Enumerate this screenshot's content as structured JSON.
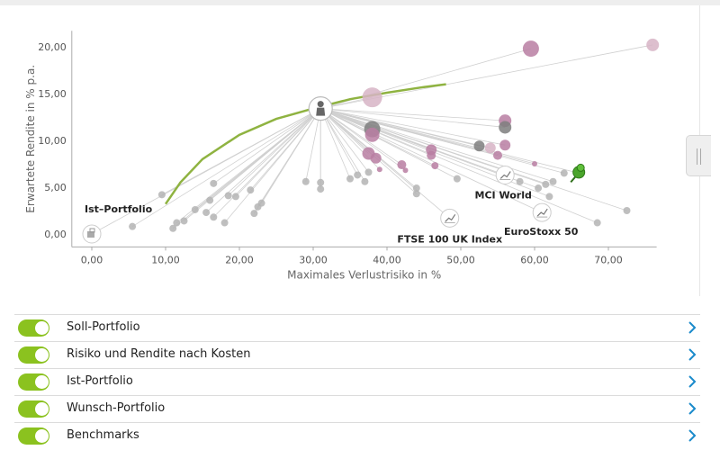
{
  "chart_data": {
    "type": "scatter",
    "xlabel": "Maximales Verlustrisiko in %",
    "ylabel": "Erwartete Rendite in % p.a.",
    "xlim": [
      -1,
      78
    ],
    "ylim": [
      -1,
      22
    ],
    "xticks": [
      0,
      10,
      20,
      30,
      40,
      50,
      60,
      70
    ],
    "xtick_labels": [
      "0,00",
      "10,00",
      "20,00",
      "30,00",
      "40,00",
      "50,00",
      "60,00",
      "70,00"
    ],
    "yticks": [
      0,
      5,
      10,
      15,
      20
    ],
    "ytick_labels": [
      "0,00",
      "5,00",
      "10,00",
      "15,00",
      "20,00"
    ],
    "colors": {
      "curve": "#8fb341",
      "gray_point": "#b4b4b4",
      "pink_point": "#b87ea2",
      "light_pink_point": "#d7b4c6",
      "dark_point": "#7e7e7e",
      "link_line": "#d0d0d0",
      "pin": "#4aa52b",
      "axis": "#aaaaaa"
    },
    "efficient_frontier": [
      [
        10,
        3.2
      ],
      [
        12,
        5.5
      ],
      [
        15,
        8
      ],
      [
        20,
        10.6
      ],
      [
        25,
        12.3
      ],
      [
        30,
        13.4
      ],
      [
        35,
        14.4
      ],
      [
        40,
        15.1
      ],
      [
        45,
        15.7
      ],
      [
        48,
        16
      ]
    ],
    "soll_portfolio": {
      "x": 31,
      "y": 13.4,
      "icon": "person-icon"
    },
    "ist_portfolio": {
      "label": "Ist–Portfolio",
      "x": 0,
      "y": 0,
      "icon": "portfolio-icon"
    },
    "benchmarks": [
      {
        "label": "MCI World",
        "x": 56,
        "y": 6.3,
        "icon": "chart-icon"
      },
      {
        "label": "FTSE 100 UK Index",
        "x": 48.5,
        "y": 1.7,
        "icon": "chart-icon"
      },
      {
        "label": "EuroStoxx 50",
        "x": 61,
        "y": 2.3,
        "icon": "chart-icon"
      }
    ],
    "wunsch_portfolio": {
      "x": 66,
      "y": 6.5,
      "icon": "pin-icon"
    },
    "points": [
      {
        "x": 5.5,
        "y": 0.8,
        "r": 4,
        "c": "gray_point"
      },
      {
        "x": 9.5,
        "y": 4.2,
        "r": 4,
        "c": "gray_point"
      },
      {
        "x": 11,
        "y": 0.6,
        "r": 4,
        "c": "gray_point"
      },
      {
        "x": 11.5,
        "y": 1.2,
        "r": 4,
        "c": "gray_point"
      },
      {
        "x": 12.5,
        "y": 1.4,
        "r": 4,
        "c": "gray_point"
      },
      {
        "x": 14,
        "y": 2.6,
        "r": 4,
        "c": "gray_point"
      },
      {
        "x": 15.5,
        "y": 2.3,
        "r": 4,
        "c": "gray_point"
      },
      {
        "x": 16,
        "y": 3.6,
        "r": 4,
        "c": "gray_point"
      },
      {
        "x": 16.5,
        "y": 1.8,
        "r": 4,
        "c": "gray_point"
      },
      {
        "x": 16.5,
        "y": 5.4,
        "r": 4,
        "c": "gray_point"
      },
      {
        "x": 18,
        "y": 1.2,
        "r": 4,
        "c": "gray_point"
      },
      {
        "x": 18.5,
        "y": 4.1,
        "r": 4,
        "c": "gray_point"
      },
      {
        "x": 19.5,
        "y": 4,
        "r": 4,
        "c": "gray_point"
      },
      {
        "x": 21.5,
        "y": 4.7,
        "r": 4,
        "c": "gray_point"
      },
      {
        "x": 22,
        "y": 2.2,
        "r": 4,
        "c": "gray_point"
      },
      {
        "x": 22.5,
        "y": 2.9,
        "r": 4,
        "c": "gray_point"
      },
      {
        "x": 23,
        "y": 3.3,
        "r": 4,
        "c": "gray_point"
      },
      {
        "x": 29,
        "y": 5.6,
        "r": 4,
        "c": "gray_point"
      },
      {
        "x": 31,
        "y": 5.5,
        "r": 4,
        "c": "gray_point"
      },
      {
        "x": 31,
        "y": 4.8,
        "r": 4,
        "c": "gray_point"
      },
      {
        "x": 35,
        "y": 5.9,
        "r": 4,
        "c": "gray_point"
      },
      {
        "x": 36,
        "y": 6.3,
        "r": 4,
        "c": "gray_point"
      },
      {
        "x": 37,
        "y": 5.6,
        "r": 4,
        "c": "gray_point"
      },
      {
        "x": 37.5,
        "y": 6.6,
        "r": 4,
        "c": "gray_point"
      },
      {
        "x": 44,
        "y": 4.3,
        "r": 4,
        "c": "gray_point"
      },
      {
        "x": 44,
        "y": 4.9,
        "r": 4,
        "c": "gray_point"
      },
      {
        "x": 49.5,
        "y": 5.9,
        "r": 4,
        "c": "gray_point"
      },
      {
        "x": 58,
        "y": 5.6,
        "r": 4,
        "c": "gray_point"
      },
      {
        "x": 60.5,
        "y": 4.9,
        "r": 4,
        "c": "gray_point"
      },
      {
        "x": 61.5,
        "y": 5.3,
        "r": 4,
        "c": "gray_point"
      },
      {
        "x": 62,
        "y": 4,
        "r": 4,
        "c": "gray_point"
      },
      {
        "x": 62.5,
        "y": 5.6,
        "r": 4,
        "c": "gray_point"
      },
      {
        "x": 64,
        "y": 6.5,
        "r": 4,
        "c": "gray_point"
      },
      {
        "x": 68.5,
        "y": 1.2,
        "r": 4,
        "c": "gray_point"
      },
      {
        "x": 72.5,
        "y": 2.5,
        "r": 4,
        "c": "gray_point"
      },
      {
        "x": 38,
        "y": 14.6,
        "r": 11,
        "c": "light_pink_point"
      },
      {
        "x": 38,
        "y": 11.2,
        "r": 9,
        "c": "dark_point"
      },
      {
        "x": 38,
        "y": 10.6,
        "r": 8,
        "c": "pink_point"
      },
      {
        "x": 37.5,
        "y": 8.6,
        "r": 7,
        "c": "pink_point"
      },
      {
        "x": 38.5,
        "y": 8.1,
        "r": 6,
        "c": "pink_point"
      },
      {
        "x": 42,
        "y": 7.4,
        "r": 5,
        "c": "pink_point"
      },
      {
        "x": 42.5,
        "y": 6.8,
        "r": 3,
        "c": "pink_point"
      },
      {
        "x": 46,
        "y": 9,
        "r": 6,
        "c": "pink_point"
      },
      {
        "x": 46,
        "y": 8.4,
        "r": 5,
        "c": "pink_point"
      },
      {
        "x": 46.5,
        "y": 7.3,
        "r": 4,
        "c": "pink_point"
      },
      {
        "x": 52.5,
        "y": 9.4,
        "r": 6,
        "c": "dark_point"
      },
      {
        "x": 54,
        "y": 9.2,
        "r": 6,
        "c": "light_pink_point"
      },
      {
        "x": 55,
        "y": 8.4,
        "r": 5,
        "c": "pink_point"
      },
      {
        "x": 56,
        "y": 12.1,
        "r": 7,
        "c": "pink_point"
      },
      {
        "x": 56,
        "y": 11.4,
        "r": 7,
        "c": "dark_point"
      },
      {
        "x": 56,
        "y": 9.5,
        "r": 6,
        "c": "pink_point"
      },
      {
        "x": 59.5,
        "y": 19.8,
        "r": 9,
        "c": "pink_point"
      },
      {
        "x": 60,
        "y": 7.5,
        "r": 3,
        "c": "pink_point"
      },
      {
        "x": 76,
        "y": 20.2,
        "r": 7,
        "c": "light_pink_point"
      },
      {
        "x": 39,
        "y": 6.9,
        "r": 3,
        "c": "pink_point"
      }
    ]
  },
  "toggles": [
    {
      "label": "Soll-Portfolio",
      "on": true
    },
    {
      "label": "Risiko und Rendite nach Kosten",
      "on": true
    },
    {
      "label": "Ist-Portfolio",
      "on": true
    },
    {
      "label": "Wunsch-Portfolio",
      "on": true
    },
    {
      "label": "Benchmarks",
      "on": true
    }
  ]
}
